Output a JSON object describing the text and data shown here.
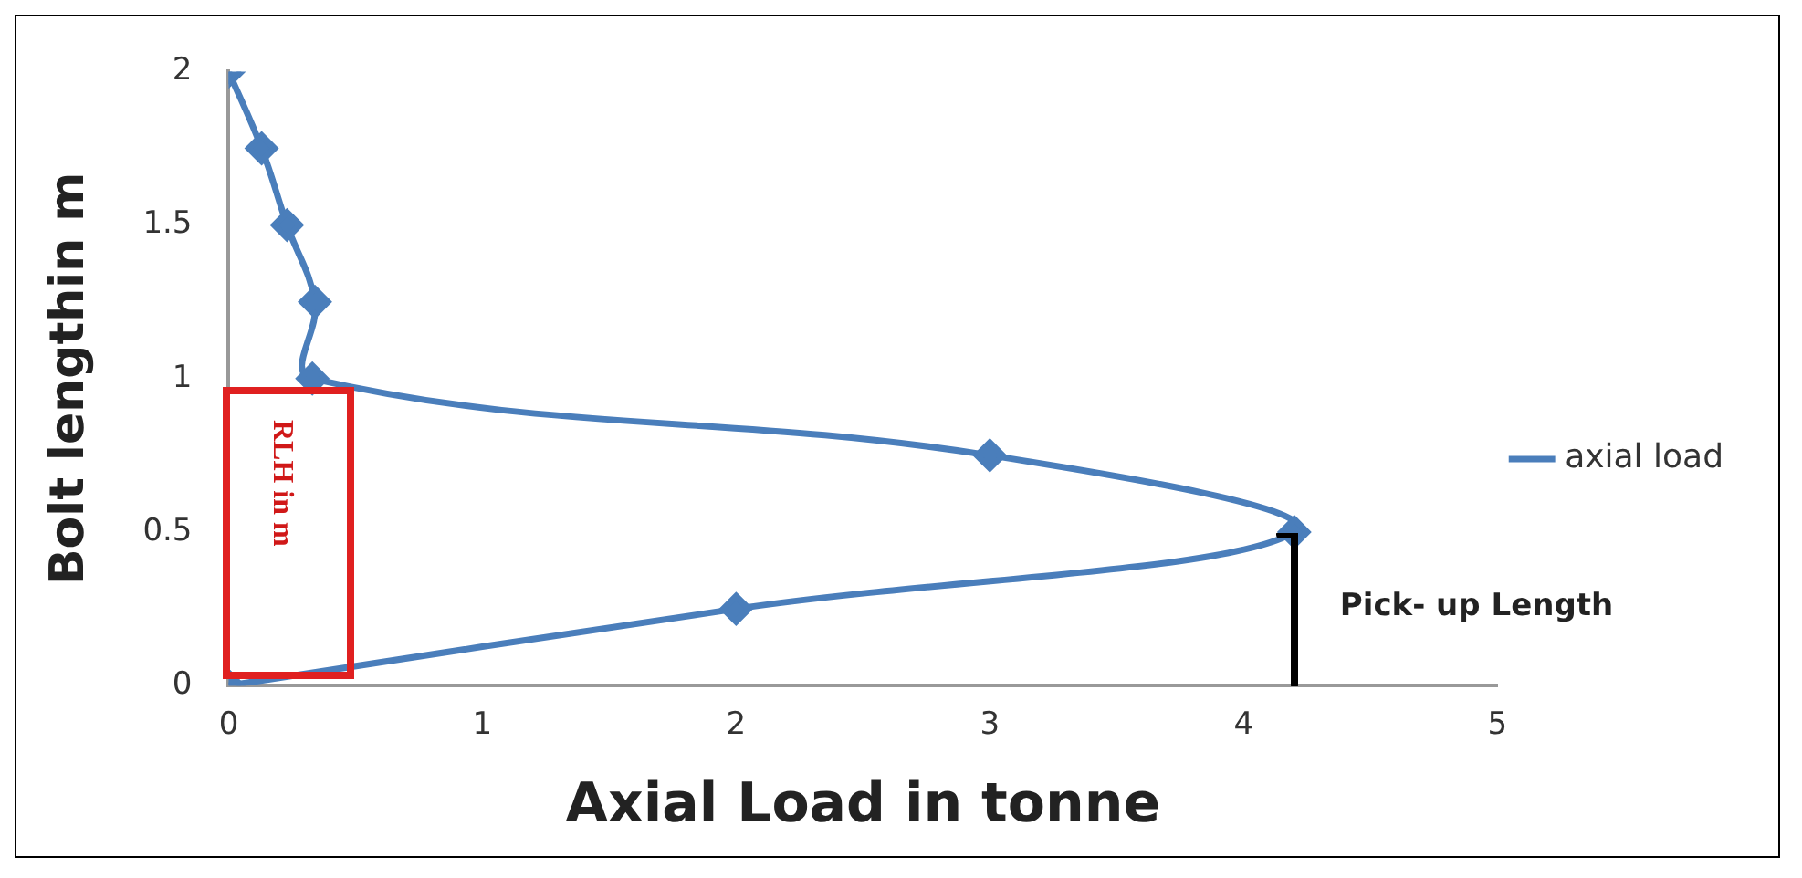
{
  "chart_data": {
    "type": "line",
    "xlabel": "Axial Load in tonne",
    "ylabel": "Bolt lengthin m",
    "series": [
      {
        "name": "axial load",
        "color": "#4a7ebb",
        "x": [
          0,
          2,
          4.2,
          3,
          0.33,
          0.34,
          0.23,
          0.13,
          0
        ],
        "values": [
          0,
          0.25,
          0.5,
          0.75,
          1,
          1.25,
          1.5,
          1.75,
          2
        ]
      }
    ],
    "xlim": [
      0,
      5
    ],
    "xticks": [
      0,
      1,
      2,
      3,
      4,
      5
    ],
    "ylim": [
      0,
      2
    ],
    "yticks": [
      0,
      0.5,
      1,
      1.5,
      2
    ],
    "grid": false,
    "legend": "right",
    "marker": "diamond",
    "annotations": [
      "RLH in m",
      "Pick- up Length"
    ]
  }
}
